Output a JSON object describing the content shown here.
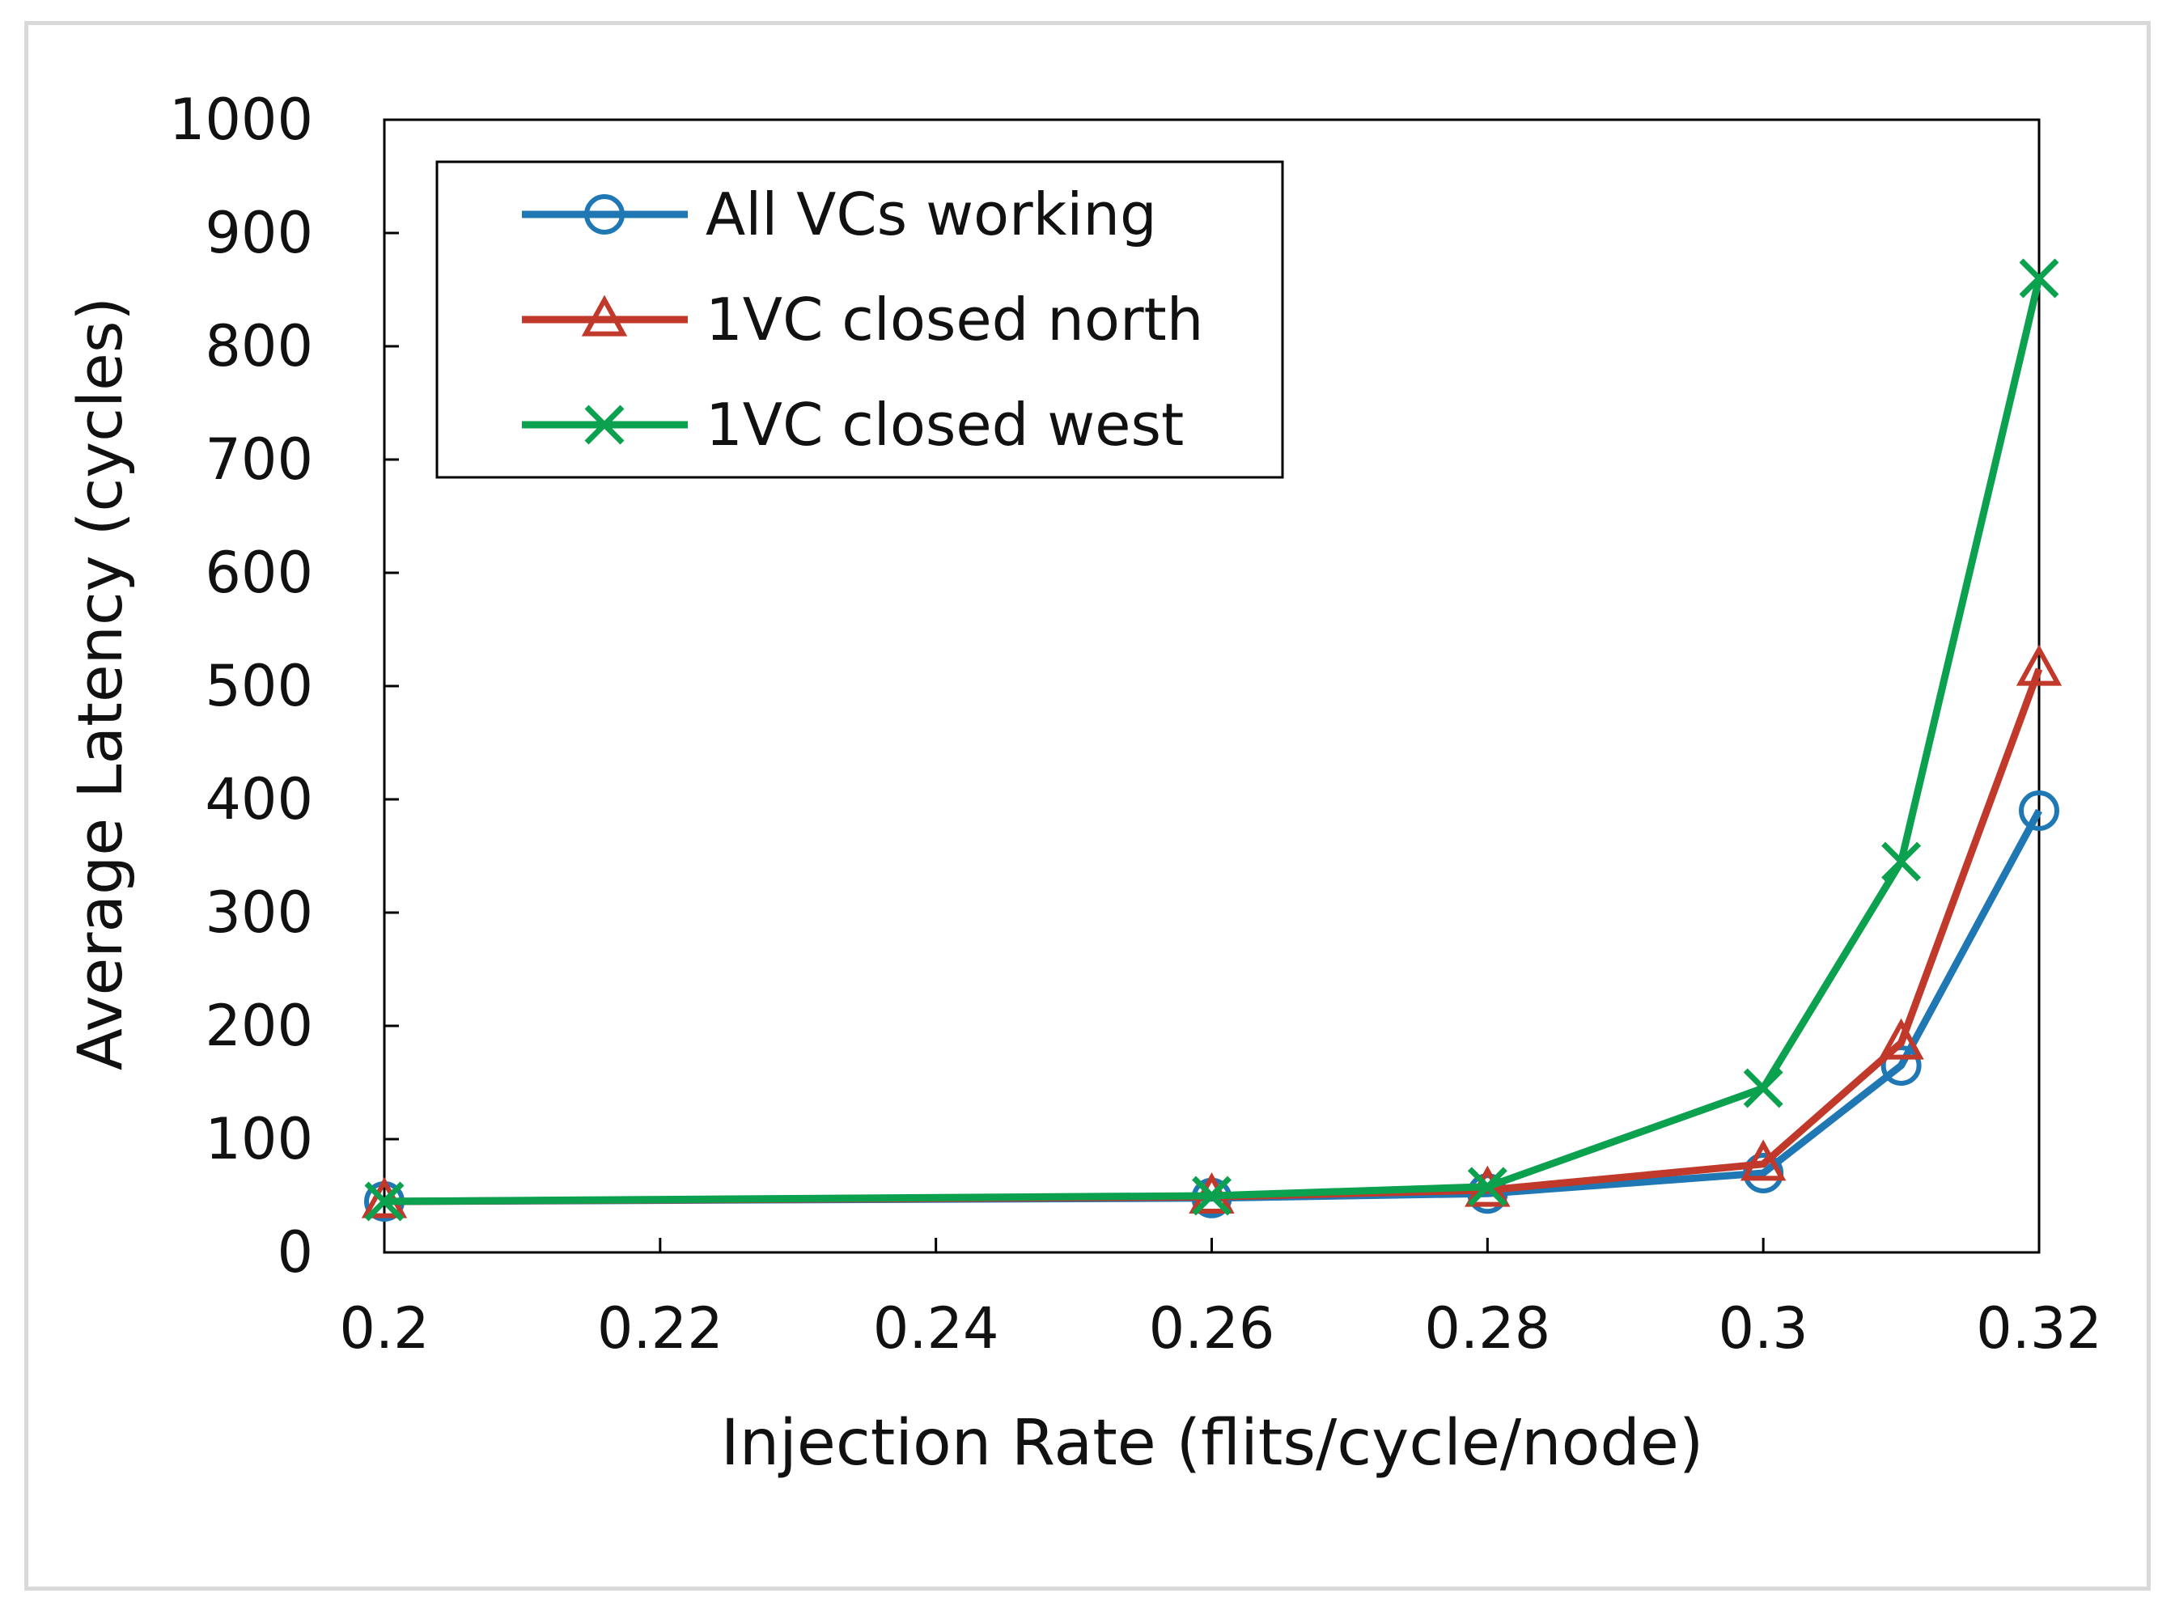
{
  "chart_data": {
    "type": "line",
    "title": "",
    "xlabel": "Injection Rate (flits/cycle/node)",
    "ylabel": "Average Latency (cycles)",
    "xlim": [
      0.2,
      0.32
    ],
    "ylim": [
      0,
      1000
    ],
    "x_ticks": [
      "0.2",
      "0.22",
      "0.24",
      "0.26",
      "0.28",
      "0.3",
      "0.32"
    ],
    "y_ticks": [
      "0",
      "100",
      "200",
      "300",
      "400",
      "500",
      "600",
      "700",
      "800",
      "900",
      "1000"
    ],
    "legend_position": "top-left",
    "grid": false,
    "series": [
      {
        "name": "All VCs working",
        "color": "#1f77b4",
        "marker": "circle",
        "x": [
          0.2,
          0.26,
          0.28,
          0.3,
          0.31,
          0.32
        ],
        "y": [
          45,
          48,
          52,
          70,
          165,
          390
        ]
      },
      {
        "name": "1VC closed north",
        "color": "#c0392b",
        "marker": "triangle",
        "x": [
          0.2,
          0.26,
          0.28,
          0.3,
          0.31,
          0.32
        ],
        "y": [
          45,
          49,
          55,
          78,
          185,
          515
        ]
      },
      {
        "name": "1VC closed west",
        "color": "#0ba14e",
        "marker": "x",
        "x": [
          0.2,
          0.26,
          0.28,
          0.3,
          0.31,
          0.32
        ],
        "y": [
          45,
          50,
          58,
          145,
          345,
          860
        ]
      }
    ]
  }
}
